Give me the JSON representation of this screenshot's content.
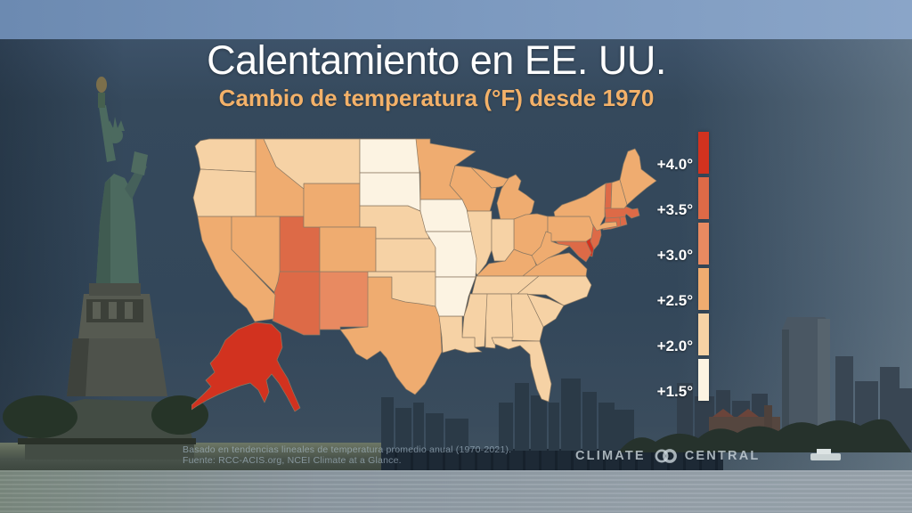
{
  "title": "Calentamiento en EE. UU.",
  "subtitle": "Cambio de temperatura (°F) desde 1970",
  "legend": {
    "labels": [
      "+4.0°",
      "+3.5°",
      "+3.0°",
      "+2.5°",
      "+2.0°",
      "+1.5°"
    ],
    "colors": [
      "#d2321f",
      "#dd6a47",
      "#e88a61",
      "#efac70",
      "#f6d2a5",
      "#fcf3e2"
    ]
  },
  "chart_data": {
    "type": "heatmap",
    "subtype": "us-state-choropleth",
    "title": "Calentamiento en EE. UU.",
    "subtitle": "Cambio de temperatura (°F) desde 1970",
    "unit": "°F desde 1970",
    "bin_labels_top_to_bottom": [
      "+4.0°",
      "+3.5°",
      "+3.0°",
      "+2.5°",
      "+2.0°",
      "+1.5°"
    ],
    "states": [
      {
        "id": "AK",
        "bin": 0
      },
      {
        "id": "DE",
        "bin": 0
      },
      {
        "id": "UT",
        "bin": 1
      },
      {
        "id": "AZ",
        "bin": 1
      },
      {
        "id": "VT",
        "bin": 1
      },
      {
        "id": "MA",
        "bin": 1
      },
      {
        "id": "CT",
        "bin": 1
      },
      {
        "id": "RI",
        "bin": 1
      },
      {
        "id": "NJ",
        "bin": 1
      },
      {
        "id": "MD",
        "bin": 1
      },
      {
        "id": "NM",
        "bin": 2
      },
      {
        "id": "CA",
        "bin": 3
      },
      {
        "id": "NV",
        "bin": 3
      },
      {
        "id": "ID",
        "bin": 3
      },
      {
        "id": "WY",
        "bin": 3
      },
      {
        "id": "CO",
        "bin": 3
      },
      {
        "id": "TX",
        "bin": 3
      },
      {
        "id": "MN",
        "bin": 3
      },
      {
        "id": "WI",
        "bin": 3
      },
      {
        "id": "MI-UP",
        "bin": 3
      },
      {
        "id": "MI",
        "bin": 3
      },
      {
        "id": "OH",
        "bin": 3
      },
      {
        "id": "KY",
        "bin": 3
      },
      {
        "id": "PA",
        "bin": 3
      },
      {
        "id": "NY",
        "bin": 3
      },
      {
        "id": "ME",
        "bin": 3
      },
      {
        "id": "NH",
        "bin": 3
      },
      {
        "id": "VA",
        "bin": 3
      },
      {
        "id": "WV",
        "bin": 3
      },
      {
        "id": "WA",
        "bin": 4
      },
      {
        "id": "OR",
        "bin": 4
      },
      {
        "id": "MT",
        "bin": 4
      },
      {
        "id": "NE",
        "bin": 4
      },
      {
        "id": "KS",
        "bin": 4
      },
      {
        "id": "OK",
        "bin": 4
      },
      {
        "id": "IL",
        "bin": 4
      },
      {
        "id": "IN",
        "bin": 4
      },
      {
        "id": "TN",
        "bin": 4
      },
      {
        "id": "NC",
        "bin": 4
      },
      {
        "id": "SC",
        "bin": 4
      },
      {
        "id": "GA",
        "bin": 4
      },
      {
        "id": "AL",
        "bin": 4
      },
      {
        "id": "MS",
        "bin": 4
      },
      {
        "id": "LA",
        "bin": 4
      },
      {
        "id": "FL",
        "bin": 4
      },
      {
        "id": "ND",
        "bin": 5
      },
      {
        "id": "SD",
        "bin": 5
      },
      {
        "id": "IA",
        "bin": 5
      },
      {
        "id": "MO",
        "bin": 5
      },
      {
        "id": "AR",
        "bin": 5
      }
    ]
  },
  "footer": {
    "line1": "Basado en tendencias lineales de temperatura promedio anual (1970-2021).",
    "line2": "Fuente: RCC-ACIS.org, NCEI Climate at a Glance."
  },
  "logo": {
    "left": "CLIMATE",
    "right": "CENTRAL"
  }
}
